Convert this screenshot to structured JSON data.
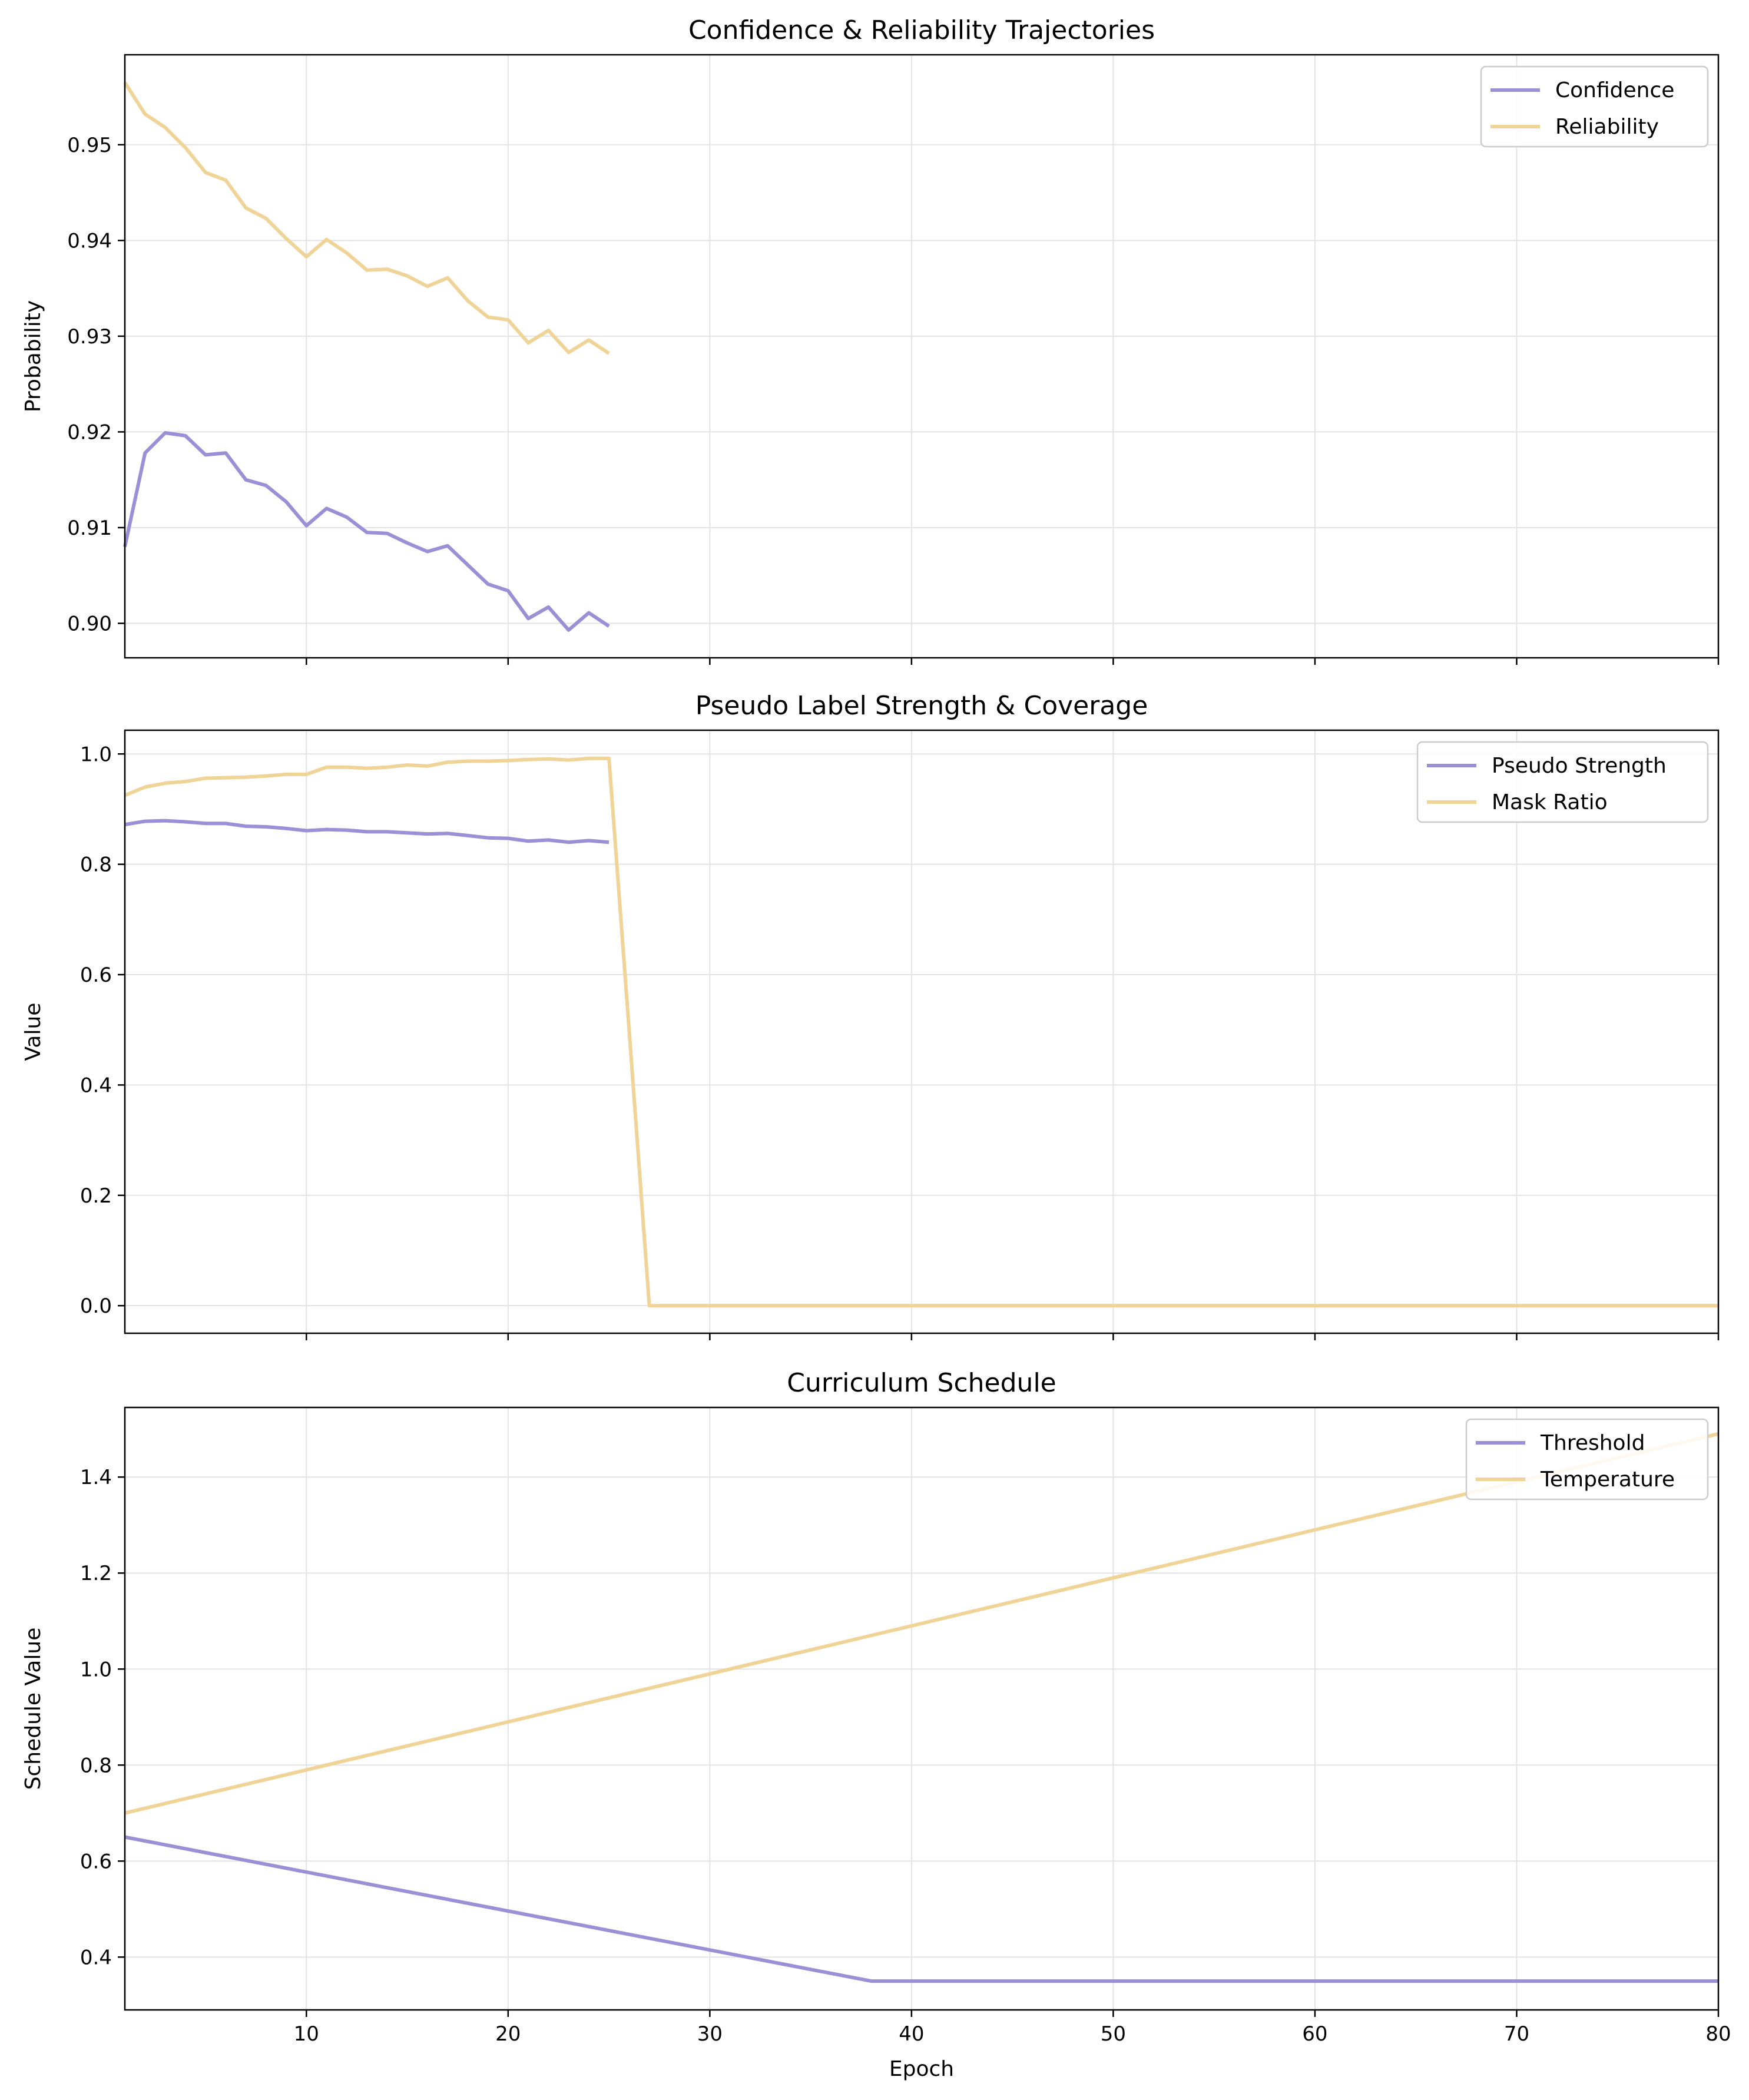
{
  "colors": {
    "series_a": "#9b8fd6",
    "series_b": "#f0d397",
    "grid": "#e3e3e3",
    "frame": "#000000"
  },
  "chart_data": [
    {
      "type": "line",
      "title": "Confidence & Reliability Trajectories",
      "xlabel": "",
      "ylabel": "Probability",
      "xlim": [
        1,
        80
      ],
      "ylim": [
        0.8964,
        0.9594
      ],
      "xticks": [
        10,
        20,
        30,
        40,
        50,
        60,
        70,
        80
      ],
      "yticks": [
        0.9,
        0.91,
        0.92,
        0.93,
        0.94,
        0.95
      ],
      "ytick_labels": [
        "0.90",
        "0.91",
        "0.92",
        "0.93",
        "0.94",
        "0.95"
      ],
      "show_xtick_labels": false,
      "grid": true,
      "legend_position": "top-right",
      "series": [
        {
          "name": "Confidence",
          "color": "#9b8fd6",
          "x": [
            1,
            2,
            3,
            4,
            5,
            6,
            7,
            8,
            9,
            10,
            11,
            12,
            13,
            14,
            15,
            16,
            17,
            18,
            19,
            20,
            21,
            22,
            23,
            24,
            25
          ],
          "y": [
            0.908,
            0.9178,
            0.9199,
            0.9196,
            0.9176,
            0.9178,
            0.915,
            0.9144,
            0.9127,
            0.9102,
            0.912,
            0.9111,
            0.9095,
            0.9094,
            0.9084,
            0.9075,
            0.9081,
            0.9061,
            0.9041,
            0.9034,
            0.9005,
            0.9017,
            0.8993,
            0.9011,
            0.8997
          ]
        },
        {
          "name": "Reliability",
          "color": "#f0d397",
          "x": [
            1,
            2,
            3,
            4,
            5,
            6,
            7,
            8,
            9,
            10,
            11,
            12,
            13,
            14,
            15,
            16,
            17,
            18,
            19,
            20,
            21,
            22,
            23,
            24,
            25
          ],
          "y": [
            0.9565,
            0.9532,
            0.9518,
            0.9497,
            0.9471,
            0.9463,
            0.9434,
            0.9423,
            0.9402,
            0.9383,
            0.9401,
            0.9387,
            0.9369,
            0.937,
            0.9363,
            0.9352,
            0.9361,
            0.9337,
            0.932,
            0.9317,
            0.9293,
            0.9306,
            0.9283,
            0.9296,
            0.9282
          ]
        }
      ]
    },
    {
      "type": "line",
      "title": "Pseudo Label Strength & Coverage",
      "xlabel": "",
      "ylabel": "Value",
      "xlim": [
        1,
        80
      ],
      "ylim": [
        -0.05,
        1.043
      ],
      "xticks": [
        10,
        20,
        30,
        40,
        50,
        60,
        70,
        80
      ],
      "yticks": [
        0.0,
        0.2,
        0.4,
        0.6,
        0.8,
        1.0
      ],
      "ytick_labels": [
        "0.0",
        "0.2",
        "0.4",
        "0.6",
        "0.8",
        "1.0"
      ],
      "show_xtick_labels": false,
      "grid": true,
      "legend_position": "top-right",
      "series": [
        {
          "name": "Pseudo Strength",
          "color": "#9b8fd6",
          "x": [
            1,
            2,
            3,
            4,
            5,
            6,
            7,
            8,
            9,
            10,
            11,
            12,
            13,
            14,
            15,
            16,
            17,
            18,
            19,
            20,
            21,
            22,
            23,
            24,
            25
          ],
          "y": [
            0.872,
            0.878,
            0.879,
            0.877,
            0.874,
            0.874,
            0.869,
            0.868,
            0.865,
            0.861,
            0.863,
            0.862,
            0.859,
            0.859,
            0.857,
            0.855,
            0.856,
            0.852,
            0.848,
            0.847,
            0.842,
            0.844,
            0.84,
            0.843,
            0.84
          ]
        },
        {
          "name": "Mask Ratio",
          "color": "#f0d397",
          "x": [
            1,
            2,
            3,
            4,
            5,
            6,
            7,
            8,
            9,
            10,
            11,
            12,
            13,
            14,
            15,
            16,
            17,
            18,
            19,
            20,
            21,
            22,
            23,
            24,
            25,
            26,
            27,
            28,
            30,
            40,
            50,
            60,
            70,
            80
          ],
          "y": [
            0.925,
            0.94,
            0.947,
            0.95,
            0.956,
            0.957,
            0.958,
            0.96,
            0.963,
            0.963,
            0.976,
            0.976,
            0.974,
            0.976,
            0.98,
            0.978,
            0.985,
            0.987,
            0.987,
            0.988,
            0.99,
            0.991,
            0.989,
            0.992,
            0.992,
            0.5,
            0.0,
            0.0,
            0.0,
            0.0,
            0.0,
            0.0,
            0.0,
            0.0
          ]
        }
      ]
    },
    {
      "type": "line",
      "title": "Curriculum Schedule",
      "xlabel": "Epoch",
      "ylabel": "Schedule Value",
      "xlim": [
        1,
        80
      ],
      "ylim": [
        0.29,
        1.545
      ],
      "xticks": [
        10,
        20,
        30,
        40,
        50,
        60,
        70,
        80
      ],
      "xtick_labels": [
        "10",
        "20",
        "30",
        "40",
        "50",
        "60",
        "70",
        "80"
      ],
      "yticks": [
        0.4,
        0.6,
        0.8,
        1.0,
        1.2,
        1.4
      ],
      "ytick_labels": [
        "0.4",
        "0.6",
        "0.8",
        "1.0",
        "1.2",
        "1.4"
      ],
      "show_xtick_labels": true,
      "grid": true,
      "legend_position": "top-right",
      "series": [
        {
          "name": "Threshold",
          "color": "#9b8fd6",
          "x": [
            1,
            38,
            80
          ],
          "y": [
            0.65,
            0.35,
            0.35
          ]
        },
        {
          "name": "Temperature",
          "color": "#f0d397",
          "x": [
            1,
            80
          ],
          "y": [
            0.7,
            1.49
          ]
        }
      ]
    }
  ]
}
